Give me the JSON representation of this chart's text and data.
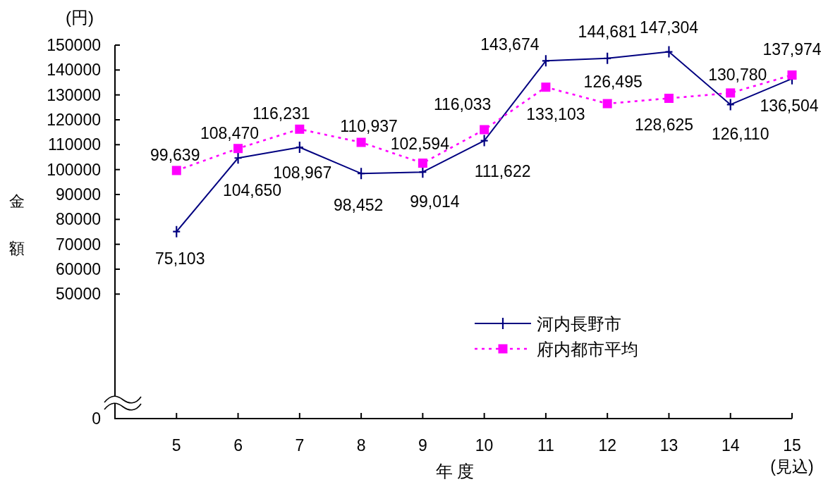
{
  "chart_data": {
    "type": "line",
    "xlabel": "年 度",
    "ylabel": "金額",
    "annotations": [
      "(円)"
    ],
    "categories": [
      "5",
      "6",
      "7",
      "8",
      "9",
      "10",
      "11",
      "12",
      "13",
      "14",
      "15\n(見込)"
    ],
    "ylim": [
      0,
      150000
    ],
    "yticks": [
      0,
      50000,
      60000,
      70000,
      80000,
      90000,
      100000,
      110000,
      120000,
      130000,
      140000,
      150000
    ],
    "legend": "bottom right",
    "series": [
      {
        "name": "河内長野市",
        "color": "#000080",
        "marker": "cross",
        "line_style": "solid",
        "values": [
          75103,
          104650,
          108967,
          98452,
          99014,
          111622,
          143674,
          144681,
          147304,
          126110,
          136504
        ],
        "value_labels": [
          "75,103",
          "104,650",
          "108,967",
          "98,452",
          "99,014",
          "111,622",
          "143,674",
          "144,681",
          "147,304",
          "126,110",
          "136,504"
        ]
      },
      {
        "name": "府内都市平均",
        "color": "#ff00ff",
        "marker": "square",
        "line_style": "dotted",
        "values": [
          99639,
          108470,
          116231,
          110937,
          102594,
          116033,
          133103,
          126495,
          128625,
          130780,
          137974
        ],
        "value_labels": [
          "99,639",
          "108,470",
          "116,231",
          "110,937",
          "102,594",
          "116,033",
          "133,103",
          "126,495",
          "128,625",
          "130,780",
          "137,974"
        ]
      }
    ]
  }
}
